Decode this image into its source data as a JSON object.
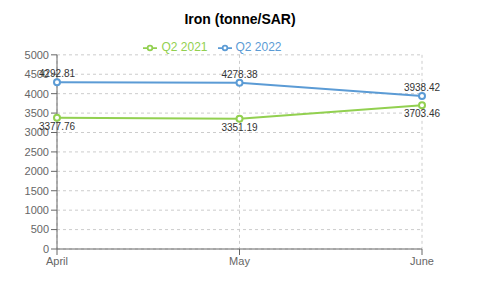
{
  "chart_data": {
    "type": "line",
    "title": "Iron (tonne/SAR)",
    "categories": [
      "April",
      "May",
      "June"
    ],
    "series": [
      {
        "name": "Q2 2022",
        "color": "#5B9BD5",
        "values": [
          4292.81,
          4278.38,
          3938.42
        ]
      },
      {
        "name": "Q2 2021",
        "color": "#92D050",
        "values": [
          3377.76,
          3351.19,
          3703.46
        ]
      }
    ],
    "ylim": [
      0,
      5000
    ],
    "yticks": [
      0,
      500,
      1000,
      1500,
      2000,
      2500,
      3000,
      3500,
      4000,
      4500,
      5000
    ],
    "grid": true,
    "legend": "top",
    "data_labels": true
  }
}
